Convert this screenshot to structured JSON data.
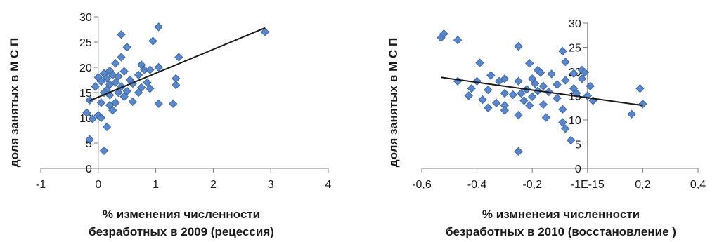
{
  "chart_data": [
    {
      "type": "scatter",
      "title": "",
      "xlabel_lines": [
        "% изменения численности",
        "безработных в 2009  (рецессия)"
      ],
      "ylabel": "доля занятых в М  С П",
      "xlim": [
        -1,
        4
      ],
      "ylim": [
        0,
        30
      ],
      "x_ticks": [
        -1,
        0,
        1,
        2,
        3,
        4
      ],
      "x_tick_labels": [
        "-1",
        "0",
        "1",
        "2",
        "3",
        "4"
      ],
      "y_ticks": [
        0,
        5,
        10,
        15,
        20,
        25,
        30
      ],
      "y_tick_labels": [
        "0",
        "5",
        "10",
        "15",
        "20",
        "25",
        "30"
      ],
      "grid": false,
      "trendline": {
        "from": [
          -0.15,
          13.4
        ],
        "to": [
          2.9,
          27.8
        ]
      },
      "colors": {
        "marker": "#5b86c8",
        "marker_edge": "#3e6aa6",
        "trend": "#1a1a1a",
        "axis": "#7f7f7f"
      },
      "points": [
        [
          2.9,
          27.0
        ],
        [
          1.05,
          28.0
        ],
        [
          0.4,
          26.5
        ],
        [
          0.95,
          25.2
        ],
        [
          0.5,
          24.0
        ],
        [
          0.4,
          22.0
        ],
        [
          1.4,
          22.0
        ],
        [
          0.3,
          20.8
        ],
        [
          0.75,
          20.5
        ],
        [
          1.05,
          20.0
        ],
        [
          0.8,
          19.5
        ],
        [
          0.9,
          19.5
        ],
        [
          0.2,
          19.3
        ],
        [
          0.45,
          19.2
        ],
        [
          0.1,
          18.8
        ],
        [
          0.25,
          18.5
        ],
        [
          0.7,
          18.5
        ],
        [
          0.35,
          18.2
        ],
        [
          0.0,
          18.0
        ],
        [
          0.15,
          17.8
        ],
        [
          1.35,
          17.8
        ],
        [
          0.55,
          17.5
        ],
        [
          0.05,
          17.2
        ],
        [
          0.3,
          17.0
        ],
        [
          0.85,
          17.0
        ],
        [
          0.6,
          16.8
        ],
        [
          0.2,
          16.6
        ],
        [
          1.35,
          16.5
        ],
        [
          -0.05,
          16.2
        ],
        [
          0.4,
          16.2
        ],
        [
          0.75,
          16.0
        ],
        [
          0.9,
          15.8
        ],
        [
          0.15,
          15.5
        ],
        [
          0.5,
          15.3
        ],
        [
          0.1,
          15.0
        ],
        [
          0.35,
          15.0
        ],
        [
          0.7,
          15.0
        ],
        [
          0.2,
          14.5
        ],
        [
          0.45,
          14.2
        ],
        [
          -0.15,
          13.5
        ],
        [
          0.6,
          13.2
        ],
        [
          0.05,
          13.0
        ],
        [
          0.3,
          13.0
        ],
        [
          1.05,
          12.8
        ],
        [
          1.3,
          12.8
        ],
        [
          0.2,
          12.5
        ],
        [
          0.25,
          11.5
        ],
        [
          -0.2,
          11.0
        ],
        [
          0.0,
          10.5
        ],
        [
          0.05,
          10.0
        ],
        [
          -0.1,
          9.8
        ],
        [
          0.15,
          8.2
        ],
        [
          -0.15,
          5.7
        ],
        [
          0.1,
          3.5
        ]
      ]
    },
    {
      "type": "scatter",
      "title": "",
      "xlabel_lines": [
        "% измненеия численности",
        "безработных в 2010  (восстановление )"
      ],
      "ylabel": "доля занятых в М  С П",
      "xlim": [
        -0.6,
        0.4
      ],
      "ylim": [
        0,
        30
      ],
      "x_ticks": [
        -0.6,
        -0.4,
        -0.2,
        0,
        0.2,
        0.4
      ],
      "x_tick_labels": [
        "-0,6",
        "-0,4",
        "-0,2",
        "-1E-15",
        "0,2",
        "0,4"
      ],
      "y_ticks": [
        0,
        5,
        10,
        15,
        20,
        25,
        30
      ],
      "y_tick_labels": [
        "0",
        "5",
        "10",
        "15",
        "20",
        "25",
        "30"
      ],
      "grid": false,
      "trendline": {
        "from": [
          -0.53,
          18.8
        ],
        "to": [
          0.2,
          13.0
        ]
      },
      "colors": {
        "marker": "#5b86c8",
        "marker_edge": "#3e6aa6",
        "trend": "#1a1a1a",
        "axis": "#7f7f7f"
      },
      "points": [
        [
          -0.53,
          27.0
        ],
        [
          -0.52,
          27.8
        ],
        [
          -0.47,
          26.5
        ],
        [
          -0.25,
          25.2
        ],
        [
          -0.09,
          24.2
        ],
        [
          -0.08,
          22.0
        ],
        [
          -0.39,
          21.8
        ],
        [
          -0.21,
          21.7
        ],
        [
          -0.18,
          20.3
        ],
        [
          -0.02,
          20.3
        ],
        [
          -0.17,
          19.8
        ],
        [
          -0.13,
          19.5
        ],
        [
          -0.35,
          19.2
        ],
        [
          -0.05,
          19.6
        ],
        [
          -0.01,
          19.8
        ],
        [
          -0.3,
          18.5
        ],
        [
          -0.2,
          18.5
        ],
        [
          -0.47,
          18.0
        ],
        [
          -0.4,
          18.0
        ],
        [
          -0.32,
          18.0
        ],
        [
          -0.25,
          18.0
        ],
        [
          -0.08,
          18.2
        ],
        [
          -0.19,
          17.5
        ],
        [
          -0.11,
          17.3
        ],
        [
          -0.16,
          17.0
        ],
        [
          -0.42,
          16.5
        ],
        [
          -0.36,
          16.2
        ],
        [
          -0.22,
          16.3
        ],
        [
          -0.05,
          16.5
        ],
        [
          -0.18,
          16.0
        ],
        [
          -0.14,
          15.8
        ],
        [
          -0.3,
          15.5
        ],
        [
          -0.24,
          15.5
        ],
        [
          -0.43,
          15.0
        ],
        [
          -0.27,
          15.2
        ],
        [
          -0.04,
          15.5
        ],
        [
          0.0,
          15.0
        ],
        [
          -0.2,
          14.8
        ],
        [
          -0.11,
          14.5
        ],
        [
          -0.38,
          14.2
        ],
        [
          -0.23,
          14.0
        ],
        [
          0.02,
          14.0
        ],
        [
          -0.33,
          13.5
        ],
        [
          -0.16,
          13.2
        ],
        [
          -0.3,
          13.0
        ],
        [
          -0.21,
          13.0
        ],
        [
          -0.36,
          12.5
        ],
        [
          -0.3,
          12.0
        ],
        [
          -0.09,
          12.2
        ],
        [
          -0.25,
          11.0
        ],
        [
          -0.15,
          10.5
        ],
        [
          0.19,
          16.5
        ],
        [
          0.16,
          11.2
        ],
        [
          0.2,
          13.3
        ],
        [
          -0.09,
          9.5
        ],
        [
          -0.08,
          8.2
        ],
        [
          -0.06,
          5.8
        ],
        [
          -0.25,
          3.5
        ],
        [
          -0.02,
          18.5
        ],
        [
          0.01,
          17.0
        ]
      ]
    }
  ]
}
